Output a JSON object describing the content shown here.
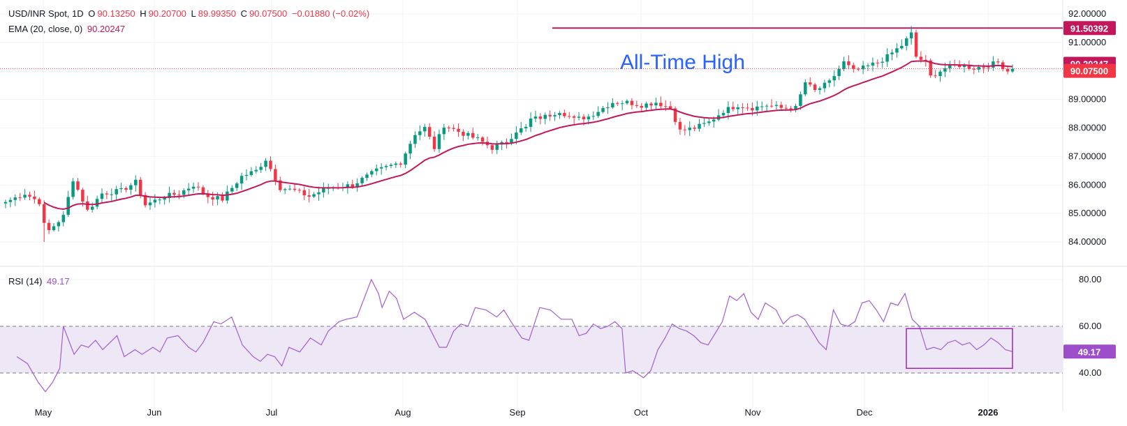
{
  "header": {
    "symbol": "USD/INR Spot, 1D",
    "o_label": "O",
    "o_value": "90.13250",
    "h_label": "H",
    "h_value": "90.20700",
    "l_label": "L",
    "l_value": "89.99350",
    "c_label": "C",
    "c_value": "90.07500",
    "change": "−0.01880 (−0.02%)",
    "ema_label": "EMA (20, close, 0)",
    "ema_value": "90.20247",
    "rsi_label": "RSI (14)",
    "rsi_value": "49.17"
  },
  "annotation": {
    "text": "All-Time High"
  },
  "price_tags": {
    "ath": "91.50392",
    "ema": "90.20247",
    "last": "90.07500",
    "rsi": "49.17"
  },
  "colors": {
    "up": "#089981",
    "down": "#f23645",
    "ema": "#c2185b",
    "ath_line": "#c2185b",
    "rsi": "#a35dd3",
    "rsi_band": "#ede7f6",
    "annotation": "#2962ff",
    "grid": "#f0f3fa",
    "text": "#131722"
  },
  "chart_data": [
    {
      "type": "candlestick",
      "title": "USD/INR Spot, 1D",
      "x_labels": [
        "May",
        "Jun",
        "Jul",
        "Aug",
        "Sep",
        "Oct",
        "Nov",
        "Dec",
        "2026"
      ],
      "y_ticks": [
        "84.00000",
        "85.00000",
        "86.00000",
        "87.00000",
        "88.00000",
        "89.00000",
        "90.00000",
        "91.00000",
        "92.00000"
      ],
      "ylim": [
        83.2,
        92.2
      ],
      "all_time_high": 91.50392,
      "last_close": 90.075,
      "ema_last": 90.20247,
      "grid": true,
      "close_anchors": [
        {
          "i": 0,
          "v": 85.4
        },
        {
          "i": 4,
          "v": 85.7
        },
        {
          "i": 7,
          "v": 85.4
        },
        {
          "i": 8,
          "v": 84.6
        },
        {
          "i": 9,
          "v": 84.4
        },
        {
          "i": 12,
          "v": 84.9
        },
        {
          "i": 14,
          "v": 86.2
        },
        {
          "i": 17,
          "v": 85.1
        },
        {
          "i": 20,
          "v": 85.7
        },
        {
          "i": 24,
          "v": 85.8
        },
        {
          "i": 27,
          "v": 86.1
        },
        {
          "i": 29,
          "v": 85.3
        },
        {
          "i": 33,
          "v": 85.6
        },
        {
          "i": 36,
          "v": 85.7
        },
        {
          "i": 39,
          "v": 86.0
        },
        {
          "i": 42,
          "v": 85.6
        },
        {
          "i": 45,
          "v": 85.5
        },
        {
          "i": 49,
          "v": 86.3
        },
        {
          "i": 52,
          "v": 86.5
        },
        {
          "i": 54,
          "v": 86.9
        },
        {
          "i": 57,
          "v": 85.9
        },
        {
          "i": 60,
          "v": 85.8
        },
        {
          "i": 63,
          "v": 85.6
        },
        {
          "i": 67,
          "v": 85.9
        },
        {
          "i": 72,
          "v": 86.0
        },
        {
          "i": 77,
          "v": 86.5
        },
        {
          "i": 82,
          "v": 86.8
        },
        {
          "i": 85,
          "v": 87.8
        },
        {
          "i": 87,
          "v": 88.0
        },
        {
          "i": 89,
          "v": 87.3
        },
        {
          "i": 91,
          "v": 88.1
        },
        {
          "i": 95,
          "v": 87.8
        },
        {
          "i": 98,
          "v": 87.6
        },
        {
          "i": 101,
          "v": 87.3
        },
        {
          "i": 104,
          "v": 87.5
        },
        {
          "i": 106,
          "v": 87.9
        },
        {
          "i": 108,
          "v": 88.0
        },
        {
          "i": 109,
          "v": 88.3
        },
        {
          "i": 112,
          "v": 88.4
        },
        {
          "i": 115,
          "v": 88.6
        },
        {
          "i": 118,
          "v": 88.3
        },
        {
          "i": 121,
          "v": 88.4
        },
        {
          "i": 123,
          "v": 88.6
        },
        {
          "i": 126,
          "v": 88.9
        },
        {
          "i": 129,
          "v": 88.9
        },
        {
          "i": 132,
          "v": 88.8
        },
        {
          "i": 135,
          "v": 88.9
        },
        {
          "i": 138,
          "v": 88.7
        },
        {
          "i": 140,
          "v": 87.9
        },
        {
          "i": 143,
          "v": 88.0
        },
        {
          "i": 146,
          "v": 88.2
        },
        {
          "i": 149,
          "v": 88.6
        },
        {
          "i": 152,
          "v": 88.8
        },
        {
          "i": 155,
          "v": 88.7
        },
        {
          "i": 158,
          "v": 88.8
        },
        {
          "i": 161,
          "v": 88.7
        },
        {
          "i": 164,
          "v": 88.7
        },
        {
          "i": 166,
          "v": 89.6
        },
        {
          "i": 168,
          "v": 89.3
        },
        {
          "i": 171,
          "v": 89.6
        },
        {
          "i": 174,
          "v": 90.3
        },
        {
          "i": 176,
          "v": 90.0
        },
        {
          "i": 178,
          "v": 90.1
        },
        {
          "i": 181,
          "v": 90.3
        },
        {
          "i": 183,
          "v": 90.5
        },
        {
          "i": 186,
          "v": 90.9
        },
        {
          "i": 188,
          "v": 91.3
        },
        {
          "i": 189,
          "v": 90.5
        },
        {
          "i": 191,
          "v": 90.3
        },
        {
          "i": 192,
          "v": 89.8
        },
        {
          "i": 195,
          "v": 90.1
        },
        {
          "i": 198,
          "v": 90.2
        },
        {
          "i": 201,
          "v": 90.1
        },
        {
          "i": 204,
          "v": 90.2
        },
        {
          "i": 206,
          "v": 90.3
        },
        {
          "i": 208,
          "v": 90.0
        },
        {
          "i": 209,
          "v": 90.075
        }
      ],
      "ema": {
        "name": "EMA (20, close, 0)",
        "last": 90.20247
      },
      "candle_count": 210
    },
    {
      "type": "line",
      "title": "RSI (14)",
      "y_ticks": [
        "40.00",
        "60.00",
        "80.00"
      ],
      "ylim": [
        30,
        85
      ],
      "band": [
        40,
        60
      ],
      "last": 49.17,
      "points": [
        {
          "i": 0,
          "v": 47
        },
        {
          "i": 3,
          "v": 44
        },
        {
          "i": 6,
          "v": 36
        },
        {
          "i": 8,
          "v": 32
        },
        {
          "i": 10,
          "v": 36
        },
        {
          "i": 12,
          "v": 42
        },
        {
          "i": 13,
          "v": 60
        },
        {
          "i": 16,
          "v": 48
        },
        {
          "i": 18,
          "v": 52
        },
        {
          "i": 20,
          "v": 51
        },
        {
          "i": 22,
          "v": 54
        },
        {
          "i": 24,
          "v": 50
        },
        {
          "i": 26,
          "v": 53
        },
        {
          "i": 28,
          "v": 56
        },
        {
          "i": 30,
          "v": 47
        },
        {
          "i": 33,
          "v": 50
        },
        {
          "i": 35,
          "v": 48
        },
        {
          "i": 38,
          "v": 51
        },
        {
          "i": 40,
          "v": 49
        },
        {
          "i": 42,
          "v": 55
        },
        {
          "i": 45,
          "v": 56
        },
        {
          "i": 48,
          "v": 51
        },
        {
          "i": 50,
          "v": 49
        },
        {
          "i": 52,
          "v": 53
        },
        {
          "i": 55,
          "v": 62
        },
        {
          "i": 57,
          "v": 61
        },
        {
          "i": 60,
          "v": 64
        },
        {
          "i": 63,
          "v": 52
        },
        {
          "i": 66,
          "v": 47
        },
        {
          "i": 68,
          "v": 45
        },
        {
          "i": 70,
          "v": 48
        },
        {
          "i": 72,
          "v": 47
        },
        {
          "i": 74,
          "v": 43
        },
        {
          "i": 76,
          "v": 51
        },
        {
          "i": 79,
          "v": 49
        },
        {
          "i": 82,
          "v": 55
        },
        {
          "i": 85,
          "v": 52
        },
        {
          "i": 87,
          "v": 58
        },
        {
          "i": 90,
          "v": 62
        },
        {
          "i": 92,
          "v": 63
        },
        {
          "i": 95,
          "v": 64
        },
        {
          "i": 97,
          "v": 72
        },
        {
          "i": 99,
          "v": 80
        },
        {
          "i": 101,
          "v": 74
        },
        {
          "i": 102,
          "v": 68
        },
        {
          "i": 104,
          "v": 75
        },
        {
          "i": 106,
          "v": 72
        },
        {
          "i": 108,
          "v": 63
        },
        {
          "i": 111,
          "v": 66
        },
        {
          "i": 114,
          "v": 63
        },
        {
          "i": 116,
          "v": 57
        },
        {
          "i": 118,
          "v": 51
        },
        {
          "i": 120,
          "v": 51
        },
        {
          "i": 122,
          "v": 58
        },
        {
          "i": 124,
          "v": 61
        },
        {
          "i": 126,
          "v": 60
        },
        {
          "i": 128,
          "v": 68
        },
        {
          "i": 131,
          "v": 67
        },
        {
          "i": 134,
          "v": 64
        },
        {
          "i": 136,
          "v": 67
        },
        {
          "i": 138,
          "v": 62
        },
        {
          "i": 141,
          "v": 55
        },
        {
          "i": 143,
          "v": 54
        },
        {
          "i": 146,
          "v": 68
        },
        {
          "i": 149,
          "v": 67
        },
        {
          "i": 152,
          "v": 63
        },
        {
          "i": 155,
          "v": 63
        },
        {
          "i": 157,
          "v": 56
        },
        {
          "i": 159,
          "v": 57
        },
        {
          "i": 161,
          "v": 61
        },
        {
          "i": 163,
          "v": 59
        },
        {
          "i": 165,
          "v": 60
        },
        {
          "i": 167,
          "v": 62
        },
        {
          "i": 169,
          "v": 59
        },
        {
          "i": 170,
          "v": 40
        },
        {
          "i": 172,
          "v": 41
        },
        {
          "i": 175,
          "v": 38
        },
        {
          "i": 177,
          "v": 41
        },
        {
          "i": 179,
          "v": 50
        },
        {
          "i": 181,
          "v": 55
        },
        {
          "i": 183,
          "v": 61
        },
        {
          "i": 185,
          "v": 59
        },
        {
          "i": 187,
          "v": 58
        },
        {
          "i": 189,
          "v": 56
        },
        {
          "i": 191,
          "v": 53
        },
        {
          "i": 193,
          "v": 52
        },
        {
          "i": 195,
          "v": 57
        },
        {
          "i": 197,
          "v": 62
        },
        {
          "i": 199,
          "v": 73
        },
        {
          "i": 201,
          "v": 71
        },
        {
          "i": 203,
          "v": 74
        },
        {
          "i": 205,
          "v": 66
        },
        {
          "i": 207,
          "v": 63
        },
        {
          "i": 209,
          "v": 70
        },
        {
          "i": 212,
          "v": 67
        },
        {
          "i": 214,
          "v": 61
        },
        {
          "i": 216,
          "v": 64
        },
        {
          "i": 218,
          "v": 65
        },
        {
          "i": 220,
          "v": 63
        },
        {
          "i": 222,
          "v": 58
        },
        {
          "i": 224,
          "v": 53
        },
        {
          "i": 226,
          "v": 50
        },
        {
          "i": 228,
          "v": 67
        },
        {
          "i": 230,
          "v": 61
        },
        {
          "i": 232,
          "v": 60
        },
        {
          "i": 234,
          "v": 62
        },
        {
          "i": 236,
          "v": 70
        },
        {
          "i": 238,
          "v": 71
        },
        {
          "i": 240,
          "v": 67
        },
        {
          "i": 242,
          "v": 62
        },
        {
          "i": 244,
          "v": 70
        },
        {
          "i": 246,
          "v": 69
        },
        {
          "i": 248,
          "v": 74
        },
        {
          "i": 250,
          "v": 63
        },
        {
          "i": 252,
          "v": 60
        },
        {
          "i": 254,
          "v": 50
        },
        {
          "i": 256,
          "v": 51
        },
        {
          "i": 258,
          "v": 50
        },
        {
          "i": 260,
          "v": 53
        },
        {
          "i": 262,
          "v": 54
        },
        {
          "i": 264,
          "v": 52
        },
        {
          "i": 266,
          "v": 53
        },
        {
          "i": 268,
          "v": 50
        },
        {
          "i": 270,
          "v": 52
        },
        {
          "i": 272,
          "v": 55
        },
        {
          "i": 274,
          "v": 53
        },
        {
          "i": 276,
          "v": 50
        },
        {
          "i": 278,
          "v": 49.17
        }
      ],
      "highlight_box": {
        "from_value": 42,
        "to_value": 59
      }
    }
  ]
}
